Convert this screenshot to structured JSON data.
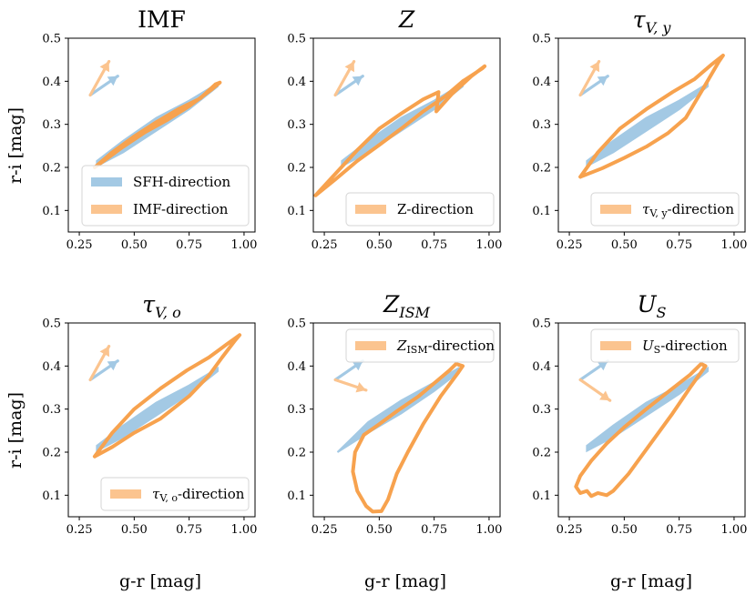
{
  "figure": {
    "ylabel": "r-i [mag]",
    "xlabel": "g-r [mag]",
    "colors": {
      "sfh": "#a3c9e4",
      "param": "#fbc48f",
      "param_line": "#f7a24e",
      "axis": "#000000"
    }
  },
  "chart_data": [
    {
      "type": "line",
      "id": "imf",
      "title": "IMF",
      "xlim": [
        0.2,
        1.05
      ],
      "ylim": [
        0.05,
        0.5
      ],
      "xticks": [
        0.25,
        0.5,
        0.75,
        1.0
      ],
      "xtick_labels": [
        "0.25",
        "0.50",
        "0.75",
        "1.00"
      ],
      "yticks": [
        0.1,
        0.2,
        0.3,
        0.4,
        0.5
      ],
      "ytick_labels": [
        "0.1",
        "0.2",
        "0.3",
        "0.4",
        "0.5"
      ],
      "legend": {
        "location": "lower-right",
        "entries": [
          {
            "label": "SFH-direction",
            "series": "sfh"
          },
          {
            "label": "IMF-direction",
            "series": "param"
          }
        ]
      },
      "sfh_band": {
        "upper": [
          [
            0.33,
            0.215
          ],
          [
            0.45,
            0.262
          ],
          [
            0.6,
            0.315
          ],
          [
            0.75,
            0.355
          ],
          [
            0.88,
            0.395
          ]
        ],
        "lower": [
          [
            0.88,
            0.388
          ],
          [
            0.75,
            0.335
          ],
          [
            0.6,
            0.285
          ],
          [
            0.45,
            0.235
          ],
          [
            0.33,
            0.203
          ]
        ]
      },
      "param_loop": [
        [
          0.32,
          0.2
        ],
        [
          0.4,
          0.235
        ],
        [
          0.5,
          0.272
        ],
        [
          0.6,
          0.305
        ],
        [
          0.7,
          0.335
        ],
        [
          0.8,
          0.36
        ],
        [
          0.87,
          0.393
        ],
        [
          0.89,
          0.397
        ],
        [
          0.85,
          0.38
        ],
        [
          0.75,
          0.342
        ],
        [
          0.65,
          0.31
        ],
        [
          0.55,
          0.282
        ],
        [
          0.45,
          0.248
        ],
        [
          0.38,
          0.222
        ],
        [
          0.32,
          0.2
        ]
      ],
      "arrows": {
        "origin": [
          0.3,
          0.368
        ],
        "sfh_tip": [
          0.425,
          0.412
        ],
        "param_tip": [
          0.385,
          0.446
        ]
      }
    },
    {
      "type": "line",
      "id": "z",
      "title": "Z",
      "xlim": [
        0.2,
        1.05
      ],
      "ylim": [
        0.05,
        0.5
      ],
      "xticks": [
        0.25,
        0.5,
        0.75,
        1.0
      ],
      "xtick_labels": [
        "0.25",
        "0.50",
        "0.75",
        "1.00"
      ],
      "yticks": [
        0.1,
        0.2,
        0.3,
        0.4,
        0.5
      ],
      "ytick_labels": [
        "0.1",
        "0.2",
        "0.3",
        "0.4",
        "0.5"
      ],
      "legend": {
        "location": "lower-right",
        "entries": [
          {
            "label": "Z-direction",
            "series": "param"
          }
        ]
      },
      "sfh_band": {
        "upper": [
          [
            0.33,
            0.215
          ],
          [
            0.45,
            0.262
          ],
          [
            0.6,
            0.315
          ],
          [
            0.75,
            0.355
          ],
          [
            0.88,
            0.395
          ]
        ],
        "lower": [
          [
            0.88,
            0.388
          ],
          [
            0.75,
            0.335
          ],
          [
            0.6,
            0.285
          ],
          [
            0.45,
            0.235
          ],
          [
            0.33,
            0.203
          ]
        ]
      },
      "param_loop": [
        [
          0.21,
          0.135
        ],
        [
          0.3,
          0.185
        ],
        [
          0.4,
          0.24
        ],
        [
          0.5,
          0.29
        ],
        [
          0.6,
          0.325
        ],
        [
          0.7,
          0.358
        ],
        [
          0.77,
          0.375
        ],
        [
          0.76,
          0.33
        ],
        [
          0.83,
          0.37
        ],
        [
          0.92,
          0.412
        ],
        [
          0.98,
          0.435
        ],
        [
          0.97,
          0.43
        ],
        [
          0.88,
          0.4
        ],
        [
          0.8,
          0.365
        ],
        [
          0.7,
          0.33
        ],
        [
          0.6,
          0.29
        ],
        [
          0.5,
          0.252
        ],
        [
          0.4,
          0.215
        ],
        [
          0.3,
          0.172
        ],
        [
          0.21,
          0.135
        ]
      ],
      "arrows": {
        "origin": [
          0.3,
          0.368
        ],
        "sfh_tip": [
          0.425,
          0.412
        ],
        "param_tip": [
          0.385,
          0.446
        ]
      }
    },
    {
      "type": "line",
      "id": "tau_vy",
      "title": "τV,y",
      "title_parts": {
        "main": "τ",
        "sub": "V, y"
      },
      "xlim": [
        0.2,
        1.05
      ],
      "ylim": [
        0.05,
        0.5
      ],
      "xticks": [
        0.25,
        0.5,
        0.75,
        1.0
      ],
      "xtick_labels": [
        "0.25",
        "0.50",
        "0.75",
        "1.00"
      ],
      "yticks": [
        0.1,
        0.2,
        0.3,
        0.4,
        0.5
      ],
      "ytick_labels": [
        "0.1",
        "0.2",
        "0.3",
        "0.4",
        "0.5"
      ],
      "legend": {
        "location": "lower-right",
        "entries": [
          {
            "label": "τV, y-direction",
            "series": "param",
            "label_parts": {
              "main": "τ",
              "sub": "V, y",
              "rest": "-direction"
            }
          }
        ]
      },
      "sfh_band": {
        "upper": [
          [
            0.33,
            0.215
          ],
          [
            0.45,
            0.262
          ],
          [
            0.6,
            0.315
          ],
          [
            0.75,
            0.355
          ],
          [
            0.88,
            0.395
          ]
        ],
        "lower": [
          [
            0.88,
            0.388
          ],
          [
            0.75,
            0.335
          ],
          [
            0.6,
            0.285
          ],
          [
            0.45,
            0.235
          ],
          [
            0.33,
            0.203
          ]
        ]
      },
      "param_loop": [
        [
          0.3,
          0.178
        ],
        [
          0.38,
          0.235
        ],
        [
          0.48,
          0.29
        ],
        [
          0.6,
          0.335
        ],
        [
          0.72,
          0.375
        ],
        [
          0.82,
          0.405
        ],
        [
          0.9,
          0.44
        ],
        [
          0.95,
          0.46
        ],
        [
          0.93,
          0.445
        ],
        [
          0.85,
          0.375
        ],
        [
          0.78,
          0.315
        ],
        [
          0.7,
          0.28
        ],
        [
          0.6,
          0.248
        ],
        [
          0.5,
          0.222
        ],
        [
          0.4,
          0.198
        ],
        [
          0.3,
          0.178
        ]
      ],
      "arrows": {
        "origin": [
          0.3,
          0.368
        ],
        "sfh_tip": [
          0.425,
          0.412
        ],
        "param_tip": [
          0.385,
          0.446
        ]
      }
    },
    {
      "type": "line",
      "id": "tau_vo",
      "title": "τV,o",
      "title_parts": {
        "main": "τ",
        "sub": "V, o"
      },
      "xlim": [
        0.2,
        1.05
      ],
      "ylim": [
        0.05,
        0.5
      ],
      "xticks": [
        0.25,
        0.5,
        0.75,
        1.0
      ],
      "xtick_labels": [
        "0.25",
        "0.50",
        "0.75",
        "1.00"
      ],
      "yticks": [
        0.1,
        0.2,
        0.3,
        0.4,
        0.5
      ],
      "ytick_labels": [
        "0.1",
        "0.2",
        "0.3",
        "0.4",
        "0.5"
      ],
      "legend": {
        "location": "lower-right",
        "entries": [
          {
            "label": "τV, o-direction",
            "series": "param",
            "label_parts": {
              "main": "τ",
              "sub": "V, o",
              "rest": "-direction"
            }
          }
        ]
      },
      "sfh_band": {
        "upper": [
          [
            0.33,
            0.215
          ],
          [
            0.45,
            0.262
          ],
          [
            0.6,
            0.315
          ],
          [
            0.75,
            0.355
          ],
          [
            0.88,
            0.395
          ]
        ],
        "lower": [
          [
            0.88,
            0.388
          ],
          [
            0.75,
            0.335
          ],
          [
            0.6,
            0.285
          ],
          [
            0.45,
            0.235
          ],
          [
            0.33,
            0.203
          ]
        ]
      },
      "param_loop": [
        [
          0.32,
          0.19
        ],
        [
          0.4,
          0.245
        ],
        [
          0.5,
          0.3
        ],
        [
          0.62,
          0.348
        ],
        [
          0.74,
          0.39
        ],
        [
          0.84,
          0.42
        ],
        [
          0.92,
          0.45
        ],
        [
          0.98,
          0.472
        ],
        [
          0.96,
          0.46
        ],
        [
          0.9,
          0.42
        ],
        [
          0.84,
          0.378
        ],
        [
          0.75,
          0.33
        ],
        [
          0.62,
          0.278
        ],
        [
          0.5,
          0.245
        ],
        [
          0.4,
          0.212
        ],
        [
          0.32,
          0.19
        ]
      ],
      "arrows": {
        "origin": [
          0.3,
          0.368
        ],
        "sfh_tip": [
          0.425,
          0.412
        ],
        "param_tip": [
          0.385,
          0.446
        ]
      }
    },
    {
      "type": "line",
      "id": "z_ism",
      "title": "ZISM",
      "title_parts": {
        "main": "Z",
        "sub": "ISM"
      },
      "xlim": [
        0.2,
        1.05
      ],
      "ylim": [
        0.05,
        0.5
      ],
      "xticks": [
        0.25,
        0.5,
        0.75,
        1.0
      ],
      "xtick_labels": [
        "0.25",
        "0.50",
        "0.75",
        "1.00"
      ],
      "yticks": [
        0.1,
        0.2,
        0.3,
        0.4,
        0.5
      ],
      "ytick_labels": [
        "0.1",
        "0.2",
        "0.3",
        "0.4",
        "0.5"
      ],
      "legend": {
        "location": "upper-right",
        "entries": [
          {
            "label": "ZISM-direction",
            "series": "param",
            "label_parts": {
              "main": "Z",
              "sub": "ISM",
              "rest": "-direction"
            }
          }
        ]
      },
      "sfh_band": {
        "upper": [
          [
            0.31,
            0.2
          ],
          [
            0.45,
            0.27
          ],
          [
            0.6,
            0.32
          ],
          [
            0.75,
            0.362
          ],
          [
            0.86,
            0.395
          ]
        ],
        "lower": [
          [
            0.86,
            0.385
          ],
          [
            0.75,
            0.342
          ],
          [
            0.6,
            0.29
          ],
          [
            0.45,
            0.245
          ],
          [
            0.31,
            0.2
          ]
        ]
      },
      "param_loop": [
        [
          0.85,
          0.405
        ],
        [
          0.82,
          0.39
        ],
        [
          0.75,
          0.36
        ],
        [
          0.68,
          0.33
        ],
        [
          0.58,
          0.295
        ],
        [
          0.5,
          0.265
        ],
        [
          0.43,
          0.24
        ],
        [
          0.39,
          0.2
        ],
        [
          0.38,
          0.155
        ],
        [
          0.4,
          0.11
        ],
        [
          0.44,
          0.075
        ],
        [
          0.47,
          0.062
        ],
        [
          0.51,
          0.063
        ],
        [
          0.54,
          0.09
        ],
        [
          0.58,
          0.15
        ],
        [
          0.63,
          0.2
        ],
        [
          0.7,
          0.265
        ],
        [
          0.78,
          0.33
        ],
        [
          0.86,
          0.385
        ],
        [
          0.88,
          0.4
        ],
        [
          0.85,
          0.405
        ]
      ],
      "arrows": {
        "origin": [
          0.3,
          0.368
        ],
        "sfh_tip": [
          0.425,
          0.412
        ],
        "param_tip": [
          0.44,
          0.344
        ]
      }
    },
    {
      "type": "line",
      "id": "u_s",
      "title": "US",
      "title_parts": {
        "main": "U",
        "sub": "S"
      },
      "xlim": [
        0.2,
        1.05
      ],
      "ylim": [
        0.05,
        0.5
      ],
      "xticks": [
        0.25,
        0.5,
        0.75,
        1.0
      ],
      "xtick_labels": [
        "0.25",
        "0.50",
        "0.75",
        "1.00"
      ],
      "yticks": [
        0.1,
        0.2,
        0.3,
        0.4,
        0.5
      ],
      "ytick_labels": [
        "0.1",
        "0.2",
        "0.3",
        "0.4",
        "0.5"
      ],
      "legend": {
        "location": "upper-right",
        "entries": [
          {
            "label": "US-direction",
            "series": "param",
            "label_parts": {
              "main": "U",
              "sub": "S",
              "rest": "-direction"
            }
          }
        ]
      },
      "sfh_band": {
        "upper": [
          [
            0.33,
            0.215
          ],
          [
            0.45,
            0.262
          ],
          [
            0.6,
            0.315
          ],
          [
            0.75,
            0.355
          ],
          [
            0.88,
            0.395
          ]
        ],
        "lower": [
          [
            0.88,
            0.388
          ],
          [
            0.75,
            0.335
          ],
          [
            0.6,
            0.285
          ],
          [
            0.45,
            0.235
          ],
          [
            0.33,
            0.203
          ]
        ]
      },
      "param_loop": [
        [
          0.85,
          0.405
        ],
        [
          0.8,
          0.38
        ],
        [
          0.7,
          0.34
        ],
        [
          0.6,
          0.3
        ],
        [
          0.5,
          0.258
        ],
        [
          0.42,
          0.22
        ],
        [
          0.35,
          0.18
        ],
        [
          0.3,
          0.145
        ],
        [
          0.28,
          0.12
        ],
        [
          0.3,
          0.105
        ],
        [
          0.33,
          0.11
        ],
        [
          0.35,
          0.098
        ],
        [
          0.38,
          0.105
        ],
        [
          0.42,
          0.1
        ],
        [
          0.45,
          0.11
        ],
        [
          0.52,
          0.15
        ],
        [
          0.62,
          0.22
        ],
        [
          0.72,
          0.29
        ],
        [
          0.8,
          0.35
        ],
        [
          0.87,
          0.4
        ],
        [
          0.85,
          0.405
        ]
      ],
      "arrows": {
        "origin": [
          0.3,
          0.368
        ],
        "sfh_tip": [
          0.425,
          0.412
        ],
        "param_tip": [
          0.435,
          0.32
        ]
      }
    }
  ]
}
